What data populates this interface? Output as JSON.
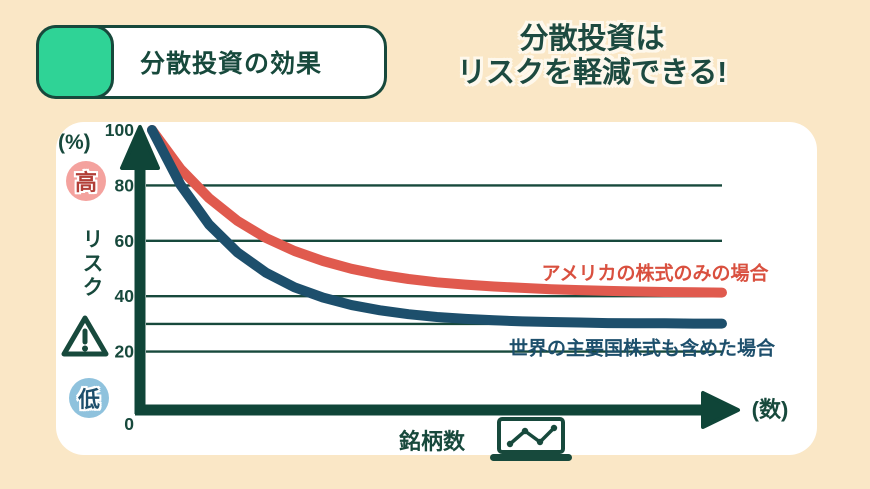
{
  "header": {
    "badge_label": "分散投資の効果",
    "title_line1": "分散投資は",
    "title_line2": "リスクを軽減できる!"
  },
  "colors": {
    "background": "#FAE7C6",
    "card": "#FFFFFF",
    "ink_green": "#17493C",
    "axis_green": "#0F4538",
    "accent_green": "#2FD396",
    "series_red": "#E05A4E",
    "series_blue": "#1D4F6C",
    "high_badge_bg": "#F4A29E",
    "high_badge_text": "#B23E37",
    "low_badge_bg": "#8FC2DD",
    "low_badge_text": "#1D4F6C"
  },
  "chart_data": {
    "type": "line",
    "title": "分散投資の効果",
    "ylabel": "リスク",
    "y_unit_label": "(%)",
    "xlabel": "銘柄数",
    "x_unit_label": "(数)",
    "y_high_label": "高",
    "y_low_label": "低",
    "ylim": [
      0,
      100
    ],
    "y_ticks": [
      100,
      80,
      60,
      40,
      20,
      0
    ],
    "gridlines_at": [
      80,
      60,
      40,
      30,
      20
    ],
    "grid": true,
    "legend_position": "inline-annotations",
    "x": [
      0,
      5,
      10,
      15,
      20,
      25,
      30,
      35,
      40,
      45,
      50,
      55,
      60,
      65,
      70,
      75,
      80,
      85,
      90,
      95,
      100
    ],
    "series": [
      {
        "name": "アメリカの株式のみの場合",
        "color": "#E05A4E",
        "asymptote_pct": 41,
        "values": [
          100,
          86,
          75.4,
          67.2,
          61,
          56.3,
          52.7,
          49.9,
          47.8,
          46.2,
          45,
          44.2,
          43.5,
          43,
          42.5,
          42.2,
          41.9,
          41.7,
          41.5,
          41.4,
          41.3
        ]
      },
      {
        "name": "世界の主要国株式も含めた場合",
        "color": "#1D4F6C",
        "asymptote_pct": 30,
        "values": [
          100,
          80.2,
          65.9,
          55.8,
          48.5,
          43.2,
          39.5,
          36.8,
          34.9,
          33.5,
          32.5,
          31.8,
          31.3,
          30.9,
          30.7,
          30.5,
          30.3,
          30.2,
          30.2,
          30.1,
          30.1
        ]
      }
    ]
  }
}
